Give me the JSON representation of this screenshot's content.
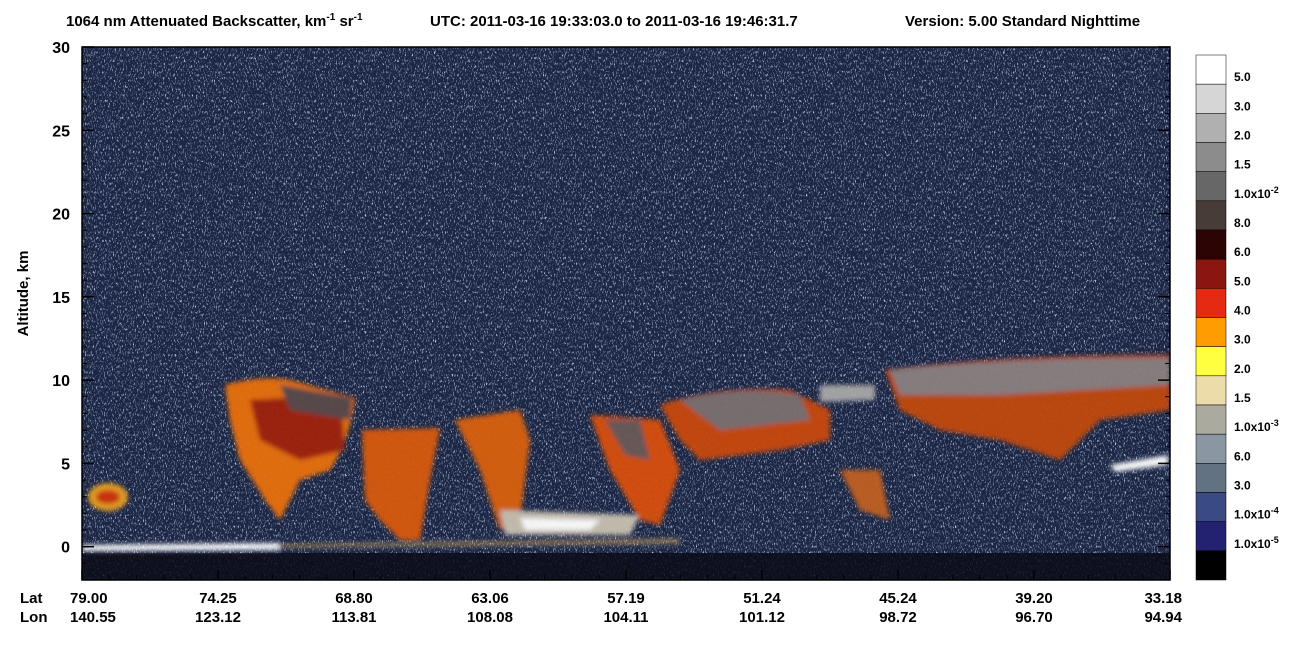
{
  "chart_data": {
    "type": "heatmap",
    "title": [
      {
        "text": "1064 nm Attenuated Backscatter, km"
      },
      {
        "sup": "-1"
      },
      {
        "text": " sr"
      },
      {
        "sup": "-1"
      }
    ],
    "time_range": "UTC:  2011-03-16 19:33:03.0  to  2011-03-16 19:46:31.7",
    "version": "Version: 5.00  Standard  Nighttime",
    "ylabel": "Altitude, km",
    "ylim": [
      -2,
      30
    ],
    "yticks": [
      0,
      5,
      10,
      15,
      20,
      25,
      30
    ],
    "x_row_labels": [
      "Lat",
      "Lon"
    ],
    "lat": [
      "79.00",
      "74.25",
      "68.80",
      "63.06",
      "57.19",
      "51.24",
      "45.24",
      "39.20",
      "33.18"
    ],
    "lon": [
      "140.55",
      "123.12",
      "113.81",
      "108.08",
      "104.11",
      "101.12",
      "98.72",
      "96.70",
      "94.94"
    ],
    "colorbar": {
      "colors": [
        "#ffffff",
        "#d6d6d6",
        "#b0b0b0",
        "#8c8c8c",
        "#676767",
        "#483c39",
        "#2c0404",
        "#8a1610",
        "#e42a10",
        "#ff9c00",
        "#ffff40",
        "#ecdcaa",
        "#aaaa9e",
        "#8a96a2",
        "#627282",
        "#3a4a82",
        "#222270",
        "#000000"
      ],
      "labels": [
        {
          "base": "5.0"
        },
        {
          "base": "3.0"
        },
        {
          "base": "2.0"
        },
        {
          "base": "1.5"
        },
        {
          "base": "1.0x10",
          "exp": "-2"
        },
        {
          "base": "8.0"
        },
        {
          "base": "6.0"
        },
        {
          "base": "5.0"
        },
        {
          "base": "4.0"
        },
        {
          "base": "3.0"
        },
        {
          "base": "2.0"
        },
        {
          "base": "1.5"
        },
        {
          "base": "1.0x10",
          "exp": "-3"
        },
        {
          "base": "6.0"
        },
        {
          "base": "3.0"
        },
        {
          "base": "1.0x10",
          "exp": "-4"
        },
        {
          "base": "1.0x10",
          "exp": "-5"
        }
      ]
    }
  }
}
